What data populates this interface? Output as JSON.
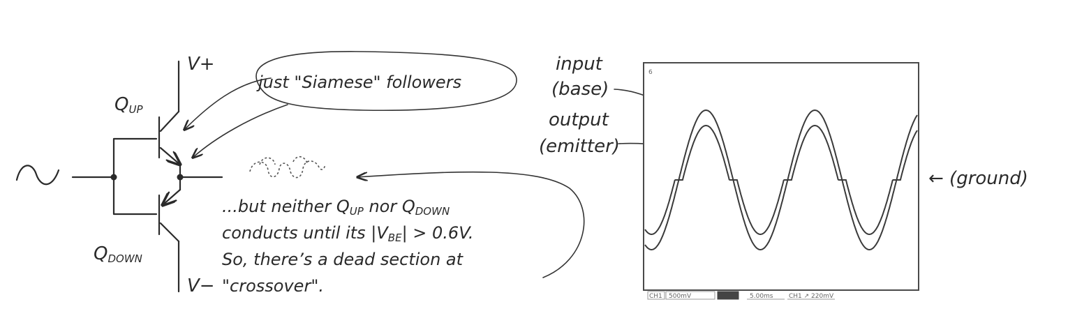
{
  "left": {
    "vplus": "V+",
    "vminus": "V−",
    "q_up": {
      "main": "Q",
      "sub": "UP"
    },
    "q_down": {
      "main": "Q",
      "sub": "DOWN"
    },
    "bubble_text": "just \"Siamese\" followers",
    "note": {
      "l1a": "...but neither Q",
      "l1b": "UP",
      "l1c": " nor Q",
      "l1d": "DOWN",
      "l2a": "conducts until its  |V",
      "l2b": "BE",
      "l2c": "|  > 0.6V.",
      "l3": "So, there’s a dead section at",
      "l4": "\"crossover\"."
    }
  },
  "scope": {
    "labels": {
      "input1": "input",
      "input2": "(base)",
      "output1": "output",
      "output2": "(emitter)",
      "ground": "← (ground)"
    },
    "corner": "6",
    "status": [
      "CH1",
      "500mV",
      "",
      "5.00ms",
      "CH1 ↗ 220mV"
    ],
    "traces": {
      "input_amplitude": 1.0,
      "output_amplitude": 0.78,
      "dead_zone": 0.22,
      "cycles": 2.5
    }
  }
}
